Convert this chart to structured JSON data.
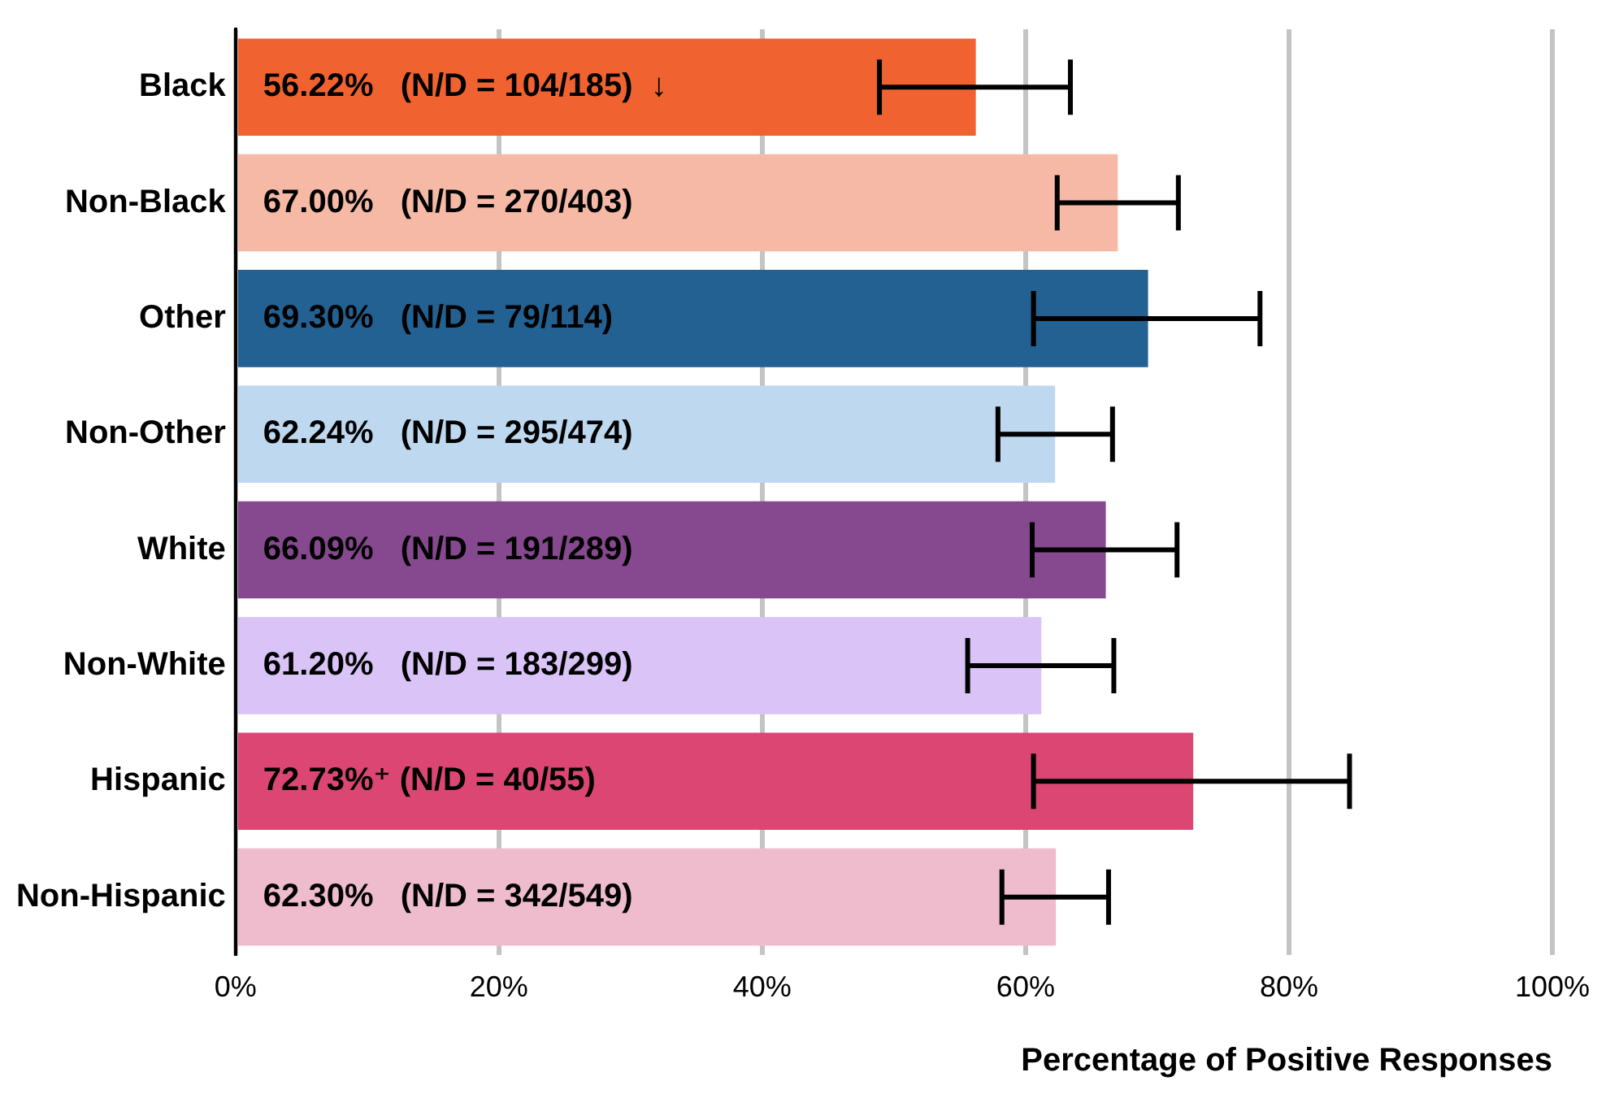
{
  "chart_data": {
    "type": "bar",
    "orientation": "horizontal",
    "xlabel": "Percentage of Positive Responses",
    "categories": [
      "Black",
      "Non-Black",
      "Other",
      "Non-Other",
      "White",
      "Non-White",
      "Hispanic",
      "Non-Hispanic"
    ],
    "values": [
      56.22,
      67.0,
      69.3,
      62.24,
      66.09,
      61.2,
      72.73,
      62.3
    ],
    "colors": [
      "#f06330",
      "#f6b9a6",
      "#236192",
      "#bdd8ef",
      "#86488f",
      "#d9c3f7",
      "#dc4672",
      "#eebccc"
    ],
    "errors": [
      [
        48.9,
        63.4
      ],
      [
        62.4,
        71.6
      ],
      [
        60.6,
        77.8
      ],
      [
        57.9,
        66.6
      ],
      [
        60.5,
        71.5
      ],
      [
        55.6,
        66.7
      ],
      [
        60.6,
        84.6
      ],
      [
        58.2,
        66.3
      ]
    ],
    "value_labels": [
      "56.22%   (N/D = 104/185)  ↓",
      "67.00%   (N/D = 270/403)",
      "69.30%   (N/D = 79/114)",
      "62.24%   (N/D = 295/474)",
      "66.09%   (N/D = 191/289)",
      "61.20%   (N/D = 183/299)",
      "72.73%⁺ (N/D = 40/55)",
      "62.30%   (N/D = 342/549)"
    ],
    "xlim": [
      0,
      100
    ],
    "xticks": [
      {
        "value": 0,
        "label": "0%"
      },
      {
        "value": 20,
        "label": "20%"
      },
      {
        "value": 40,
        "label": "40%"
      },
      {
        "value": 60,
        "label": "60%"
      },
      {
        "value": 80,
        "label": "80%"
      },
      {
        "value": 100,
        "label": "100%"
      }
    ],
    "grid": "x",
    "legend": false
  }
}
